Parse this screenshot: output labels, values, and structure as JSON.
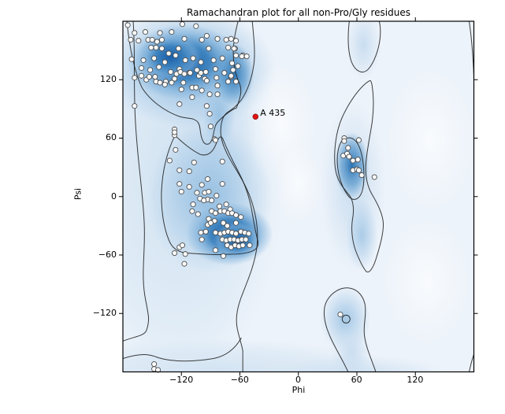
{
  "title": "Ramachandran plot for all non-Pro/Gly residues",
  "chart_data": {
    "type": "scatter",
    "title": "Ramachandran plot for all non-Pro/Gly residues",
    "xlabel": "Phi",
    "ylabel": "Psi",
    "xlim": [
      -180,
      180
    ],
    "ylim": [
      -180,
      180
    ],
    "xticks": [
      -120,
      -60,
      0,
      60,
      120
    ],
    "yticks": [
      120,
      60,
      0,
      -60,
      -120
    ],
    "grid": false,
    "legend": "none",
    "background_density": "kernel-density shading of favored Ramachandran regions",
    "colors": {
      "density_core": "#1a5ea7",
      "density_mid": "#7fb2dc",
      "density_light": "#c7dcef",
      "plot_background": "#edf3fa",
      "contour_line": "#1c1c1c",
      "point_fill": "#fcfcfc",
      "point_stroke": "#4d4d4d",
      "annotation_point": "#e31313"
    },
    "annotation": {
      "label": "A 435",
      "phi": -44,
      "psi": 82
    },
    "points": [
      [
        -175,
        176
      ],
      [
        -119,
        177
      ],
      [
        -105,
        175
      ],
      [
        -168,
        168
      ],
      [
        -157,
        169
      ],
      [
        -142,
        168
      ],
      [
        -130,
        169
      ],
      [
        -94,
        165
      ],
      [
        -83,
        162
      ],
      [
        -172,
        161
      ],
      [
        -164,
        160
      ],
      [
        -154,
        161
      ],
      [
        -150,
        161
      ],
      [
        -145,
        159
      ],
      [
        -140,
        161
      ],
      [
        -117,
        162
      ],
      [
        -99,
        161
      ],
      [
        -74,
        161
      ],
      [
        -69,
        162
      ],
      [
        -64,
        160
      ],
      [
        -151,
        153
      ],
      [
        -146,
        153
      ],
      [
        -140,
        152
      ],
      [
        -123,
        152
      ],
      [
        -92,
        152
      ],
      [
        -72,
        153
      ],
      [
        -65,
        152
      ],
      [
        -57,
        145
      ],
      [
        -66,
        152
      ],
      [
        -64,
        145
      ],
      [
        -58,
        144
      ],
      [
        -53,
        144
      ],
      [
        -68,
        137
      ],
      [
        -62,
        134
      ],
      [
        -67,
        130
      ],
      [
        -69,
        123
      ],
      [
        -64,
        118
      ],
      [
        -133,
        147
      ],
      [
        -126,
        145
      ],
      [
        -171,
        141
      ],
      [
        -159,
        140
      ],
      [
        -148,
        142
      ],
      [
        -137,
        138
      ],
      [
        -116,
        140
      ],
      [
        -108,
        142
      ],
      [
        -100,
        138
      ],
      [
        -87,
        140
      ],
      [
        -78,
        142
      ],
      [
        -161,
        132
      ],
      [
        -152,
        130
      ],
      [
        -143,
        133
      ],
      [
        -131,
        128
      ],
      [
        -122,
        131
      ],
      [
        -112,
        127
      ],
      [
        -104,
        130
      ],
      [
        -95,
        128
      ],
      [
        -85,
        131
      ],
      [
        -76,
        127
      ],
      [
        -168,
        122
      ],
      [
        -156,
        120
      ],
      [
        -147,
        123
      ],
      [
        -136,
        118
      ],
      [
        -127,
        121
      ],
      [
        -118,
        117
      ],
      [
        -161,
        124
      ],
      [
        -153,
        123
      ],
      [
        -146,
        118
      ],
      [
        -142,
        117
      ],
      [
        -137,
        115
      ],
      [
        -130,
        117
      ],
      [
        -125,
        126
      ],
      [
        -121,
        128
      ],
      [
        -117,
        126
      ],
      [
        -111,
        127
      ],
      [
        -102,
        124
      ],
      [
        -100,
        127
      ],
      [
        -96,
        121
      ],
      [
        -94,
        119
      ],
      [
        -84,
        122
      ],
      [
        -83,
        114
      ],
      [
        -72,
        118
      ],
      [
        -69,
        124
      ],
      [
        -120,
        110
      ],
      [
        -109,
        112
      ],
      [
        -105,
        112
      ],
      [
        -99,
        109
      ],
      [
        -91,
        105
      ],
      [
        -83,
        105
      ],
      [
        -109,
        102
      ],
      [
        -122,
        95
      ],
      [
        -168,
        93
      ],
      [
        -94,
        93
      ],
      [
        -91,
        85
      ],
      [
        -90,
        72
      ],
      [
        -86,
        59
      ],
      [
        -127,
        69
      ],
      [
        -127,
        63
      ],
      [
        -127,
        66
      ],
      [
        -85,
        58
      ],
      [
        -126,
        48
      ],
      [
        -132,
        37
      ],
      [
        -78,
        36
      ],
      [
        -107,
        35
      ],
      [
        -122,
        27
      ],
      [
        -112,
        26
      ],
      [
        -93,
        18
      ],
      [
        -122,
        13
      ],
      [
        -99,
        12
      ],
      [
        -78,
        13
      ],
      [
        -120,
        5
      ],
      [
        -112,
        10
      ],
      [
        -104,
        4
      ],
      [
        -96,
        4
      ],
      [
        -92,
        5
      ],
      [
        -101,
        -2
      ],
      [
        -93,
        -3
      ],
      [
        -89,
        -4
      ],
      [
        -97,
        -4
      ],
      [
        -84,
        1
      ],
      [
        -108,
        -8
      ],
      [
        -109,
        -15
      ],
      [
        -74,
        -8
      ],
      [
        -81,
        -10
      ],
      [
        -70,
        -13
      ],
      [
        -89,
        -15
      ],
      [
        -85,
        -17
      ],
      [
        -80,
        -15
      ],
      [
        -76,
        -15
      ],
      [
        -72,
        -17
      ],
      [
        -68,
        -17
      ],
      [
        -64,
        -19
      ],
      [
        -59,
        -21
      ],
      [
        -92,
        -23
      ],
      [
        -86,
        -25
      ],
      [
        -103,
        -18
      ],
      [
        -93,
        -29
      ],
      [
        -90,
        -27
      ],
      [
        -77,
        -27
      ],
      [
        -73,
        -30
      ],
      [
        -64,
        -27
      ],
      [
        -100,
        -37
      ],
      [
        -95,
        -36
      ],
      [
        -85,
        -37
      ],
      [
        -80,
        -38
      ],
      [
        -76,
        -37
      ],
      [
        -72,
        -36
      ],
      [
        -68,
        -37
      ],
      [
        -64,
        -38
      ],
      [
        -59,
        -36
      ],
      [
        -55,
        -37
      ],
      [
        -51,
        -38
      ],
      [
        -99,
        -44
      ],
      [
        -78,
        -44
      ],
      [
        -74,
        -45
      ],
      [
        -70,
        -44
      ],
      [
        -66,
        -44
      ],
      [
        -62,
        -45
      ],
      [
        -58,
        -44
      ],
      [
        -54,
        -44
      ],
      [
        -50,
        -50
      ],
      [
        -73,
        -50
      ],
      [
        -69,
        -52
      ],
      [
        -65,
        -50
      ],
      [
        -61,
        -51
      ],
      [
        -57,
        -50
      ],
      [
        -122,
        -52
      ],
      [
        -127,
        -58
      ],
      [
        -116,
        -59
      ],
      [
        -85,
        -55
      ],
      [
        -77,
        -61
      ],
      [
        -117,
        -69
      ],
      [
        -119,
        -50
      ],
      [
        47,
        60
      ],
      [
        47,
        57
      ],
      [
        62,
        58
      ],
      [
        51,
        50
      ],
      [
        46,
        42
      ],
      [
        50,
        44
      ],
      [
        52,
        41
      ],
      [
        56,
        37
      ],
      [
        61,
        38
      ],
      [
        56,
        27
      ],
      [
        60,
        28
      ],
      [
        62,
        27
      ],
      [
        65,
        22
      ],
      [
        78,
        20
      ],
      [
        -148,
        -172
      ],
      [
        -148,
        -177
      ],
      [
        -144,
        -178
      ],
      [
        43,
        -121
      ]
    ]
  }
}
